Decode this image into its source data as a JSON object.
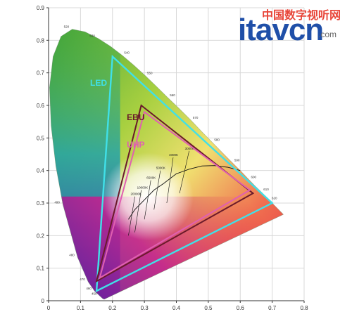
{
  "chart_data": {
    "type": "scatter",
    "title": "",
    "xlabel": "",
    "ylabel": "",
    "xlim": [
      0,
      0.8
    ],
    "ylim": [
      0,
      0.9
    ],
    "x_ticks": [
      "0",
      "0.1",
      "0.2",
      "0.3",
      "0.4",
      "0.5",
      "0.6",
      "0.7",
      "0.8"
    ],
    "y_ticks": [
      "0",
      "0.1",
      "0.2",
      "0.3",
      "0.4",
      "0.5",
      "0.6",
      "0.7",
      "0.8",
      "0.9"
    ],
    "grid": true,
    "spectral_locus": [
      [
        0.175,
        0.005
      ],
      [
        0.174,
        0.005
      ],
      [
        0.173,
        0.005
      ],
      [
        0.169,
        0.007
      ],
      [
        0.161,
        0.014
      ],
      [
        0.144,
        0.03
      ],
      [
        0.124,
        0.058
      ],
      [
        0.091,
        0.133
      ],
      [
        0.045,
        0.295
      ],
      [
        0.023,
        0.413
      ],
      [
        0.008,
        0.538
      ],
      [
        0.003,
        0.655
      ],
      [
        0.014,
        0.75
      ],
      [
        0.039,
        0.812
      ],
      [
        0.074,
        0.834
      ],
      [
        0.114,
        0.826
      ],
      [
        0.155,
        0.806
      ],
      [
        0.193,
        0.782
      ],
      [
        0.23,
        0.754
      ],
      [
        0.266,
        0.724
      ],
      [
        0.302,
        0.692
      ],
      [
        0.337,
        0.659
      ],
      [
        0.373,
        0.624
      ],
      [
        0.409,
        0.59
      ],
      [
        0.445,
        0.555
      ],
      [
        0.479,
        0.52
      ],
      [
        0.512,
        0.487
      ],
      [
        0.544,
        0.455
      ],
      [
        0.575,
        0.424
      ],
      [
        0.603,
        0.397
      ],
      [
        0.627,
        0.372
      ],
      [
        0.648,
        0.351
      ],
      [
        0.666,
        0.334
      ],
      [
        0.68,
        0.32
      ],
      [
        0.692,
        0.308
      ],
      [
        0.735,
        0.265
      ]
    ],
    "series": [
      {
        "name": "LED",
        "color": "#40e0e8",
        "vertices": [
          [
            0.2,
            0.75
          ],
          [
            0.7,
            0.3
          ],
          [
            0.15,
            0.03
          ]
        ]
      },
      {
        "name": "EBU",
        "color": "#6a1a2a",
        "vertices": [
          [
            0.29,
            0.6
          ],
          [
            0.64,
            0.33
          ],
          [
            0.15,
            0.06
          ]
        ]
      },
      {
        "name": "UHP",
        "color": "#e060b0",
        "vertices": [
          [
            0.3,
            0.58
          ],
          [
            0.63,
            0.34
          ],
          [
            0.16,
            0.07
          ]
        ]
      }
    ],
    "planckian_locus": [
      [
        0.6,
        0.4
      ],
      [
        0.56,
        0.41
      ],
      [
        0.52,
        0.415
      ],
      [
        0.48,
        0.414
      ],
      [
        0.44,
        0.404
      ],
      [
        0.4,
        0.39
      ],
      [
        0.36,
        0.36
      ],
      [
        0.33,
        0.34
      ],
      [
        0.3,
        0.31
      ],
      [
        0.27,
        0.28
      ],
      [
        0.25,
        0.25
      ]
    ],
    "isotemp_lines": [
      {
        "label": "3000K",
        "from": [
          0.44,
          0.46
        ],
        "to": [
          0.41,
          0.33
        ]
      },
      {
        "label": "4000K",
        "from": [
          0.39,
          0.44
        ],
        "to": [
          0.37,
          0.3
        ]
      },
      {
        "label": "5000K",
        "from": [
          0.35,
          0.4
        ],
        "to": [
          0.33,
          0.28
        ]
      },
      {
        "label": "6500K",
        "from": [
          0.32,
          0.37
        ],
        "to": [
          0.3,
          0.25
        ]
      },
      {
        "label": "10000K",
        "from": [
          0.29,
          0.34
        ],
        "to": [
          0.27,
          0.21
        ]
      },
      {
        "label": "20000K",
        "from": [
          0.27,
          0.32
        ],
        "to": [
          0.25,
          0.2
        ]
      }
    ],
    "annotations": {
      "wavelengths": [
        {
          "text": "520",
          "at": [
            0.074,
            0.834
          ]
        },
        {
          "text": "530",
          "at": [
            0.155,
            0.806
          ]
        },
        {
          "text": "540",
          "at": [
            0.23,
            0.754
          ]
        },
        {
          "text": "550",
          "at": [
            0.302,
            0.692
          ]
        },
        {
          "text": "560",
          "at": [
            0.373,
            0.624
          ]
        },
        {
          "text": "570",
          "at": [
            0.445,
            0.555
          ]
        },
        {
          "text": "580",
          "at": [
            0.512,
            0.487
          ]
        },
        {
          "text": "590",
          "at": [
            0.575,
            0.424
          ]
        },
        {
          "text": "600",
          "at": [
            0.627,
            0.372
          ]
        },
        {
          "text": "610",
          "at": [
            0.666,
            0.334
          ]
        },
        {
          "text": "620",
          "at": [
            0.692,
            0.308
          ]
        },
        {
          "text": "490",
          "at": [
            0.045,
            0.295
          ]
        },
        {
          "text": "480",
          "at": [
            0.091,
            0.133
          ]
        },
        {
          "text": "470",
          "at": [
            0.124,
            0.058
          ]
        },
        {
          "text": "460",
          "at": [
            0.144,
            0.03
          ]
        },
        {
          "text": "450",
          "at": [
            0.161,
            0.014
          ]
        }
      ]
    }
  },
  "watermark": {
    "cn": "中国数字视听网",
    "en": "itavcn",
    "com": ".com"
  }
}
